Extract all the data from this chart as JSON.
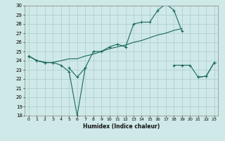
{
  "xlabel": "Humidex (Indice chaleur)",
  "x": [
    0,
    1,
    2,
    3,
    4,
    5,
    6,
    7,
    8,
    9,
    10,
    11,
    12,
    13,
    14,
    15,
    16,
    17,
    18,
    19,
    20,
    21,
    22,
    23
  ],
  "line_spike": [
    24.5,
    24.0,
    23.8,
    23.8,
    23.5,
    22.8,
    18.0,
    23.2,
    25.0,
    25.0,
    25.5,
    25.8,
    25.5,
    28.0,
    28.2,
    28.2,
    29.5,
    30.2,
    29.5,
    27.2,
    null,
    null,
    null,
    null
  ],
  "line_flat": [
    24.5,
    24.0,
    23.8,
    23.8,
    null,
    23.2,
    22.2,
    23.2,
    null,
    null,
    null,
    null,
    null,
    null,
    null,
    null,
    null,
    null,
    null,
    null,
    null,
    22.2,
    22.3,
    23.8
  ],
  "line_trend": [
    24.5,
    24.0,
    23.8,
    23.8,
    24.0,
    24.2,
    24.2,
    24.5,
    24.7,
    25.0,
    25.3,
    25.5,
    25.7,
    26.0,
    26.2,
    26.5,
    26.8,
    27.0,
    27.3,
    27.5,
    null,
    null,
    null,
    null
  ],
  "line_right": [
    null,
    null,
    null,
    null,
    null,
    null,
    null,
    null,
    null,
    null,
    null,
    null,
    null,
    null,
    null,
    null,
    null,
    null,
    23.5,
    23.5,
    23.5,
    22.2,
    22.3,
    23.8
  ],
  "ylim": [
    18,
    30
  ],
  "yticks": [
    18,
    19,
    20,
    21,
    22,
    23,
    24,
    25,
    26,
    27,
    28,
    29,
    30
  ],
  "xticks": [
    0,
    1,
    2,
    3,
    4,
    5,
    6,
    7,
    8,
    9,
    10,
    11,
    12,
    13,
    14,
    15,
    16,
    17,
    18,
    19,
    20,
    21,
    22,
    23
  ],
  "line_color": "#1a6b5a",
  "bg_color": "#cfe8e8",
  "grid_color": "#aacccc"
}
